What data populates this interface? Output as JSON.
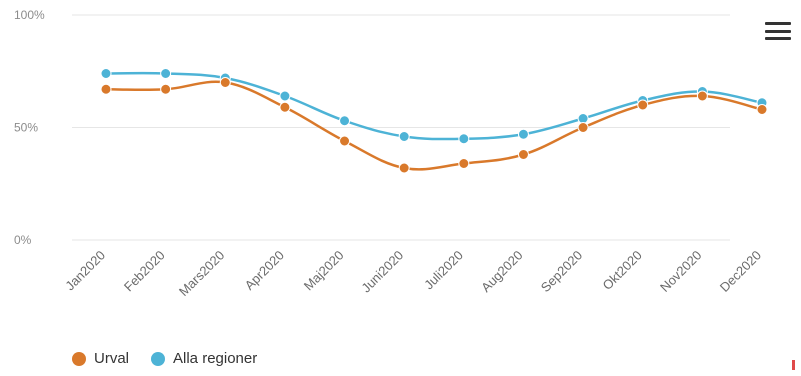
{
  "chart_data": {
    "type": "line",
    "categories": [
      "Jan2020",
      "Feb2020",
      "Mars2020",
      "Apr2020",
      "Maj2020",
      "Juni2020",
      "Juli2020",
      "Aug2020",
      "Sep2020",
      "Okt2020",
      "Nov2020",
      "Dec2020"
    ],
    "y_ticks": [
      "0%",
      "50%",
      "100%"
    ],
    "ylim": [
      0,
      100
    ],
    "grid": true,
    "legend_position": "bottom-left",
    "series": [
      {
        "name": "Urval",
        "color": "#d9792b",
        "values": [
          67,
          67,
          70,
          59,
          44,
          32,
          34,
          38,
          50,
          60,
          64,
          58
        ]
      },
      {
        "name": "Alla regioner",
        "color": "#4db3d6",
        "values": [
          74,
          74,
          72,
          64,
          53,
          46,
          45,
          47,
          54,
          62,
          66,
          61
        ]
      }
    ]
  },
  "menu": {
    "icon": "hamburger-icon"
  }
}
